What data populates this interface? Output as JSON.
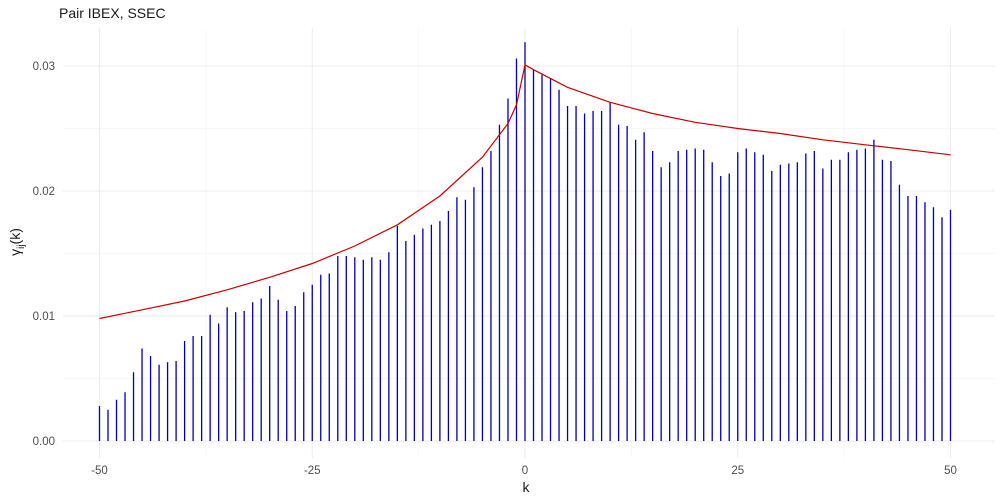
{
  "chart_data": {
    "type": "bar",
    "title": "Pair IBEX, SSEC",
    "xlabel": "k",
    "ylabel": "γij(k)",
    "ylabel_main": "γ",
    "ylabel_sub": "ij",
    "ylabel_paren": "(k)",
    "xlim": [
      -50,
      50
    ],
    "ylim": [
      0,
      0.03
    ],
    "x_ticks": [
      -50,
      -25,
      0,
      25,
      50
    ],
    "x_tick_labels": [
      "-50",
      "-25",
      "0",
      "25",
      "50"
    ],
    "y_ticks": [
      0,
      0.01,
      0.02,
      0.03
    ],
    "y_tick_labels": [
      "0.00",
      "0.01",
      "0.02",
      "0.03"
    ],
    "grid": true,
    "legend": "none",
    "colors": {
      "bars": "#0000aa",
      "curve": "#cc0000"
    },
    "bars": {
      "x": [
        -50,
        -49,
        -48,
        -47,
        -46,
        -45,
        -44,
        -43,
        -42,
        -41,
        -40,
        -39,
        -38,
        -37,
        -36,
        -35,
        -34,
        -33,
        -32,
        -31,
        -30,
        -29,
        -28,
        -27,
        -26,
        -25,
        -24,
        -23,
        -22,
        -21,
        -20,
        -19,
        -18,
        -17,
        -16,
        -15,
        -14,
        -13,
        -12,
        -11,
        -10,
        -9,
        -8,
        -7,
        -6,
        -5,
        -4,
        -3,
        -2,
        -1,
        0,
        1,
        2,
        3,
        4,
        5,
        6,
        7,
        8,
        9,
        10,
        11,
        12,
        13,
        14,
        15,
        16,
        17,
        18,
        19,
        20,
        21,
        22,
        23,
        24,
        25,
        26,
        27,
        28,
        29,
        30,
        31,
        32,
        33,
        34,
        35,
        36,
        37,
        38,
        39,
        40,
        41,
        42,
        43,
        44,
        45,
        46,
        47,
        48,
        49,
        50
      ],
      "values": [
        0.0028,
        0.0025,
        0.0033,
        0.0039,
        0.0055,
        0.0074,
        0.0068,
        0.0061,
        0.0063,
        0.0064,
        0.008,
        0.0084,
        0.0084,
        0.0101,
        0.0094,
        0.0107,
        0.0103,
        0.0104,
        0.0111,
        0.0114,
        0.0124,
        0.0113,
        0.0104,
        0.0108,
        0.0119,
        0.0125,
        0.0133,
        0.0134,
        0.0148,
        0.0148,
        0.0147,
        0.0145,
        0.0147,
        0.0145,
        0.0151,
        0.0172,
        0.016,
        0.0165,
        0.017,
        0.0173,
        0.0176,
        0.0184,
        0.0195,
        0.0193,
        0.0203,
        0.0219,
        0.0232,
        0.0253,
        0.0274,
        0.0306,
        0.0319,
        0.0297,
        0.0293,
        0.029,
        0.0281,
        0.0268,
        0.0268,
        0.0262,
        0.0264,
        0.0264,
        0.0271,
        0.0253,
        0.0252,
        0.0241,
        0.0247,
        0.0232,
        0.0219,
        0.0223,
        0.0232,
        0.0233,
        0.0234,
        0.0233,
        0.0223,
        0.0212,
        0.0214,
        0.0231,
        0.0234,
        0.0231,
        0.0229,
        0.0216,
        0.0221,
        0.0222,
        0.0223,
        0.023,
        0.0232,
        0.0218,
        0.0225,
        0.0225,
        0.0231,
        0.0233,
        0.0234,
        0.0241,
        0.0225,
        0.0224,
        0.0205,
        0.0196,
        0.0196,
        0.0191,
        0.0187,
        0.0179,
        0.0185
      ]
    },
    "curve": {
      "x": [
        -50,
        -45,
        -40,
        -35,
        -30,
        -25,
        -20,
        -15,
        -10,
        -5,
        -2,
        -1,
        0,
        1,
        5,
        10,
        15,
        20,
        25,
        30,
        35,
        40,
        45,
        50
      ],
      "values": [
        0.0098,
        0.0105,
        0.0112,
        0.0121,
        0.0131,
        0.0142,
        0.0156,
        0.0173,
        0.0196,
        0.0227,
        0.0254,
        0.0269,
        0.0301,
        0.0297,
        0.0283,
        0.0271,
        0.0262,
        0.0255,
        0.025,
        0.0246,
        0.0241,
        0.0237,
        0.0233,
        0.0229
      ]
    }
  }
}
